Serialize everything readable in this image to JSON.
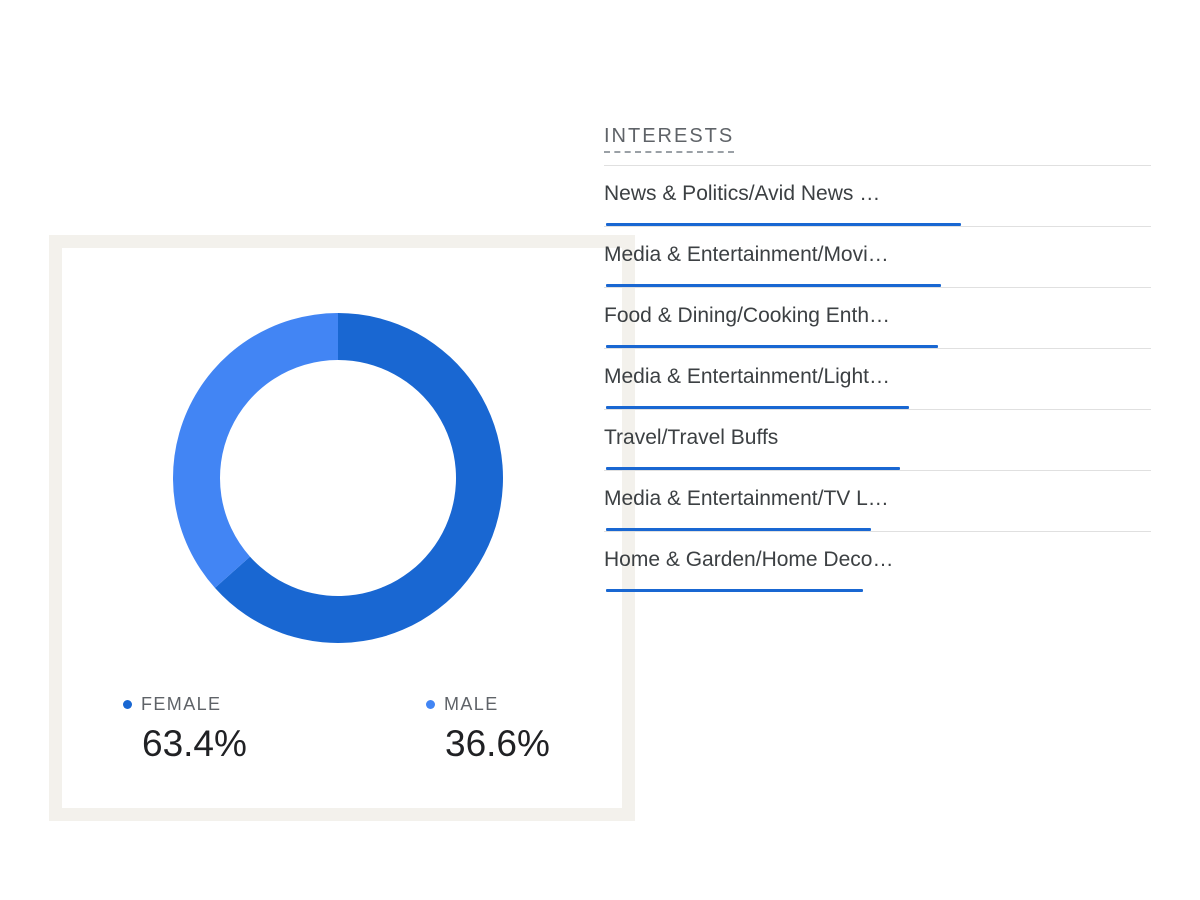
{
  "colors": {
    "female": "#1967d2",
    "male": "#4285f4",
    "bar": "#1967d2"
  },
  "gender": {
    "female": {
      "label": "FEMALE",
      "value_text": "63.4%"
    },
    "male": {
      "label": "MALE",
      "value_text": "36.6%"
    }
  },
  "interests": {
    "title": "INTERESTS",
    "items": [
      {
        "label": "News & Politics/Avid News …"
      },
      {
        "label": "Media & Entertainment/Movi…"
      },
      {
        "label": "Food & Dining/Cooking Enth…"
      },
      {
        "label": "Media & Entertainment/Light…"
      },
      {
        "label": "Travel/Travel Buffs"
      },
      {
        "label": "Media & Entertainment/TV L…"
      },
      {
        "label": "Home & Garden/Home Deco…"
      }
    ]
  },
  "chart_data": [
    {
      "type": "pie",
      "categories": [
        "FEMALE",
        "MALE"
      ],
      "values": [
        63.4,
        36.6
      ],
      "title": "",
      "xlabel": "",
      "ylabel": ""
    },
    {
      "type": "bar",
      "categories": [
        "News & Politics/Avid News …",
        "Media & Entertainment/Movi…",
        "Food & Dining/Cooking Enth…",
        "Media & Entertainment/Light…",
        "Travel/Travel Buffs",
        "Media & Entertainment/TV L…",
        "Home & Garden/Home Deco…"
      ],
      "values": [
        100,
        94.4,
        93.5,
        85.4,
        82.9,
        74.7,
        72.5
      ],
      "title": "INTERESTS",
      "xlabel": "",
      "ylabel": "",
      "ylim": [
        0,
        100
      ]
    }
  ]
}
